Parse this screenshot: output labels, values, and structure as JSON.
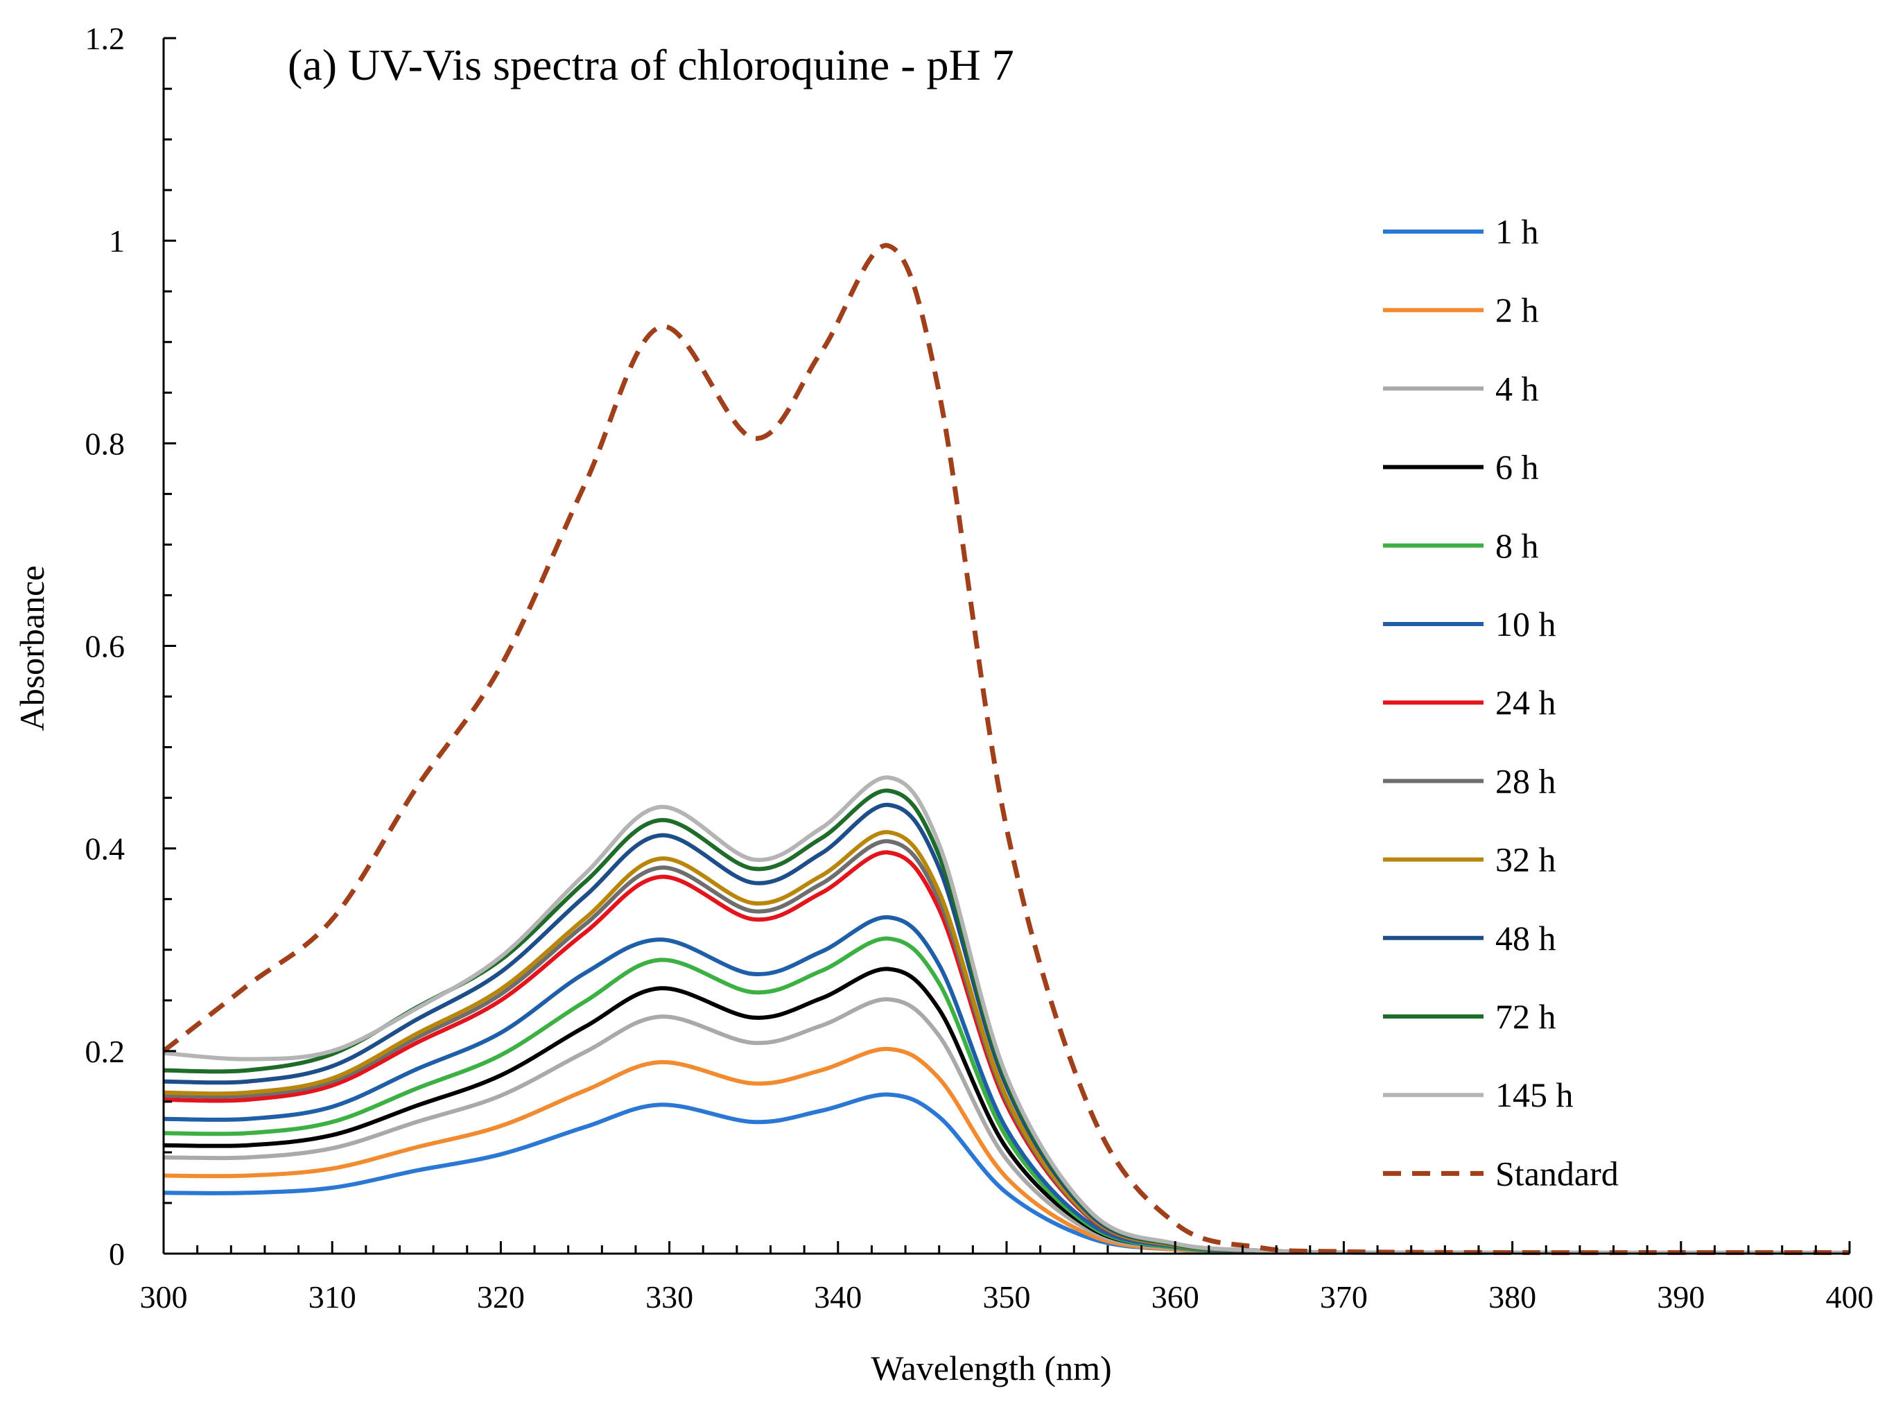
{
  "chart_data": {
    "type": "line",
    "title": "(a) UV-Vis spectra of chloroquine - pH 7",
    "xlabel": "Wavelength (nm)",
    "ylabel": "Absorbance",
    "xlim": [
      300,
      400
    ],
    "ylim": [
      0,
      1.2
    ],
    "x_ticks": [
      300,
      310,
      320,
      330,
      340,
      350,
      360,
      370,
      380,
      390,
      400
    ],
    "y_ticks": [
      0,
      0.2,
      0.4,
      0.6,
      0.8,
      1,
      1.2
    ],
    "y_tick_labels": [
      "0",
      "0.2",
      "0.4",
      "0.6",
      "0.8",
      "1",
      "1.2"
    ],
    "legend_position": "right",
    "grid": false,
    "x": [
      300,
      305,
      310,
      315,
      320,
      325,
      329.5,
      335,
      339,
      343,
      346,
      350,
      355,
      360,
      365,
      370,
      380,
      390,
      400
    ],
    "series": [
      {
        "name": "1 h",
        "color": "#2a78d4",
        "dash": false,
        "values": [
          0.06,
          0.06,
          0.065,
          0.082,
          0.098,
          0.125,
          0.147,
          0.13,
          0.141,
          0.157,
          0.135,
          0.06,
          0.015,
          0.004,
          0.002,
          0.001,
          0.001,
          0.001,
          0.001
        ]
      },
      {
        "name": "2 h",
        "color": "#f28a30",
        "dash": false,
        "values": [
          0.077,
          0.077,
          0.084,
          0.105,
          0.126,
          0.161,
          0.189,
          0.168,
          0.181,
          0.202,
          0.173,
          0.075,
          0.018,
          0.004,
          0.002,
          0.001,
          0.001,
          0.001,
          0.001
        ]
      },
      {
        "name": "4 h",
        "color": "#a9a9a9",
        "dash": false,
        "values": [
          0.095,
          0.095,
          0.104,
          0.13,
          0.156,
          0.199,
          0.234,
          0.208,
          0.225,
          0.251,
          0.215,
          0.093,
          0.022,
          0.005,
          0.002,
          0.001,
          0.001,
          0.001,
          0.001
        ]
      },
      {
        "name": "6 h",
        "color": "#000000",
        "dash": false,
        "values": [
          0.107,
          0.107,
          0.117,
          0.146,
          0.176,
          0.224,
          0.262,
          0.233,
          0.252,
          0.281,
          0.241,
          0.104,
          0.025,
          0.006,
          0.002,
          0.001,
          0.001,
          0.001,
          0.001
        ]
      },
      {
        "name": "8 h",
        "color": "#3cb043",
        "dash": false,
        "values": [
          0.119,
          0.119,
          0.13,
          0.163,
          0.196,
          0.249,
          0.29,
          0.258,
          0.279,
          0.311,
          0.267,
          0.115,
          0.027,
          0.006,
          0.002,
          0.001,
          0.001,
          0.001,
          0.001
        ]
      },
      {
        "name": "10 h",
        "color": "#1f5fa8",
        "dash": false,
        "values": [
          0.133,
          0.133,
          0.145,
          0.182,
          0.218,
          0.277,
          0.31,
          0.276,
          0.298,
          0.332,
          0.285,
          0.123,
          0.029,
          0.007,
          0.002,
          0.001,
          0.001,
          0.001,
          0.001
        ]
      },
      {
        "name": "24 h",
        "color": "#e3141b",
        "dash": false,
        "values": [
          0.152,
          0.152,
          0.166,
          0.208,
          0.25,
          0.317,
          0.372,
          0.33,
          0.356,
          0.396,
          0.34,
          0.147,
          0.034,
          0.008,
          0.003,
          0.001,
          0.001,
          0.001,
          0.001
        ]
      },
      {
        "name": "28 h",
        "color": "#6e6e6e",
        "dash": false,
        "values": [
          0.156,
          0.156,
          0.17,
          0.213,
          0.256,
          0.325,
          0.381,
          0.338,
          0.365,
          0.407,
          0.349,
          0.151,
          0.035,
          0.008,
          0.003,
          0.001,
          0.001,
          0.001,
          0.001
        ]
      },
      {
        "name": "32 h",
        "color": "#b8860b",
        "dash": false,
        "values": [
          0.159,
          0.159,
          0.173,
          0.217,
          0.261,
          0.331,
          0.39,
          0.346,
          0.373,
          0.416,
          0.357,
          0.154,
          0.036,
          0.008,
          0.003,
          0.001,
          0.001,
          0.001,
          0.001
        ]
      },
      {
        "name": "48 h",
        "color": "#1d4e89",
        "dash": false,
        "values": [
          0.17,
          0.17,
          0.185,
          0.231,
          0.278,
          0.353,
          0.413,
          0.366,
          0.395,
          0.443,
          0.381,
          0.165,
          0.038,
          0.009,
          0.003,
          0.001,
          0.001,
          0.001,
          0.001
        ]
      },
      {
        "name": "72 h",
        "color": "#1e6b2a",
        "dash": false,
        "values": [
          0.181,
          0.181,
          0.197,
          0.243,
          0.29,
          0.367,
          0.428,
          0.38,
          0.41,
          0.457,
          0.393,
          0.17,
          0.04,
          0.009,
          0.003,
          0.001,
          0.001,
          0.001,
          0.001
        ]
      },
      {
        "name": "145 h",
        "color": "#b4b4b4",
        "dash": false,
        "values": [
          0.198,
          0.192,
          0.2,
          0.242,
          0.293,
          0.375,
          0.441,
          0.389,
          0.42,
          0.47,
          0.404,
          0.175,
          0.041,
          0.01,
          0.003,
          0.001,
          0.001,
          0.001,
          0.001
        ]
      },
      {
        "name": "Standard",
        "color": "#a0401b",
        "dash": true,
        "values": [
          0.2,
          0.265,
          0.33,
          0.46,
          0.58,
          0.76,
          0.915,
          0.805,
          0.89,
          0.995,
          0.85,
          0.42,
          0.14,
          0.03,
          0.006,
          0.002,
          0.001,
          0.001,
          0.001
        ]
      }
    ]
  }
}
